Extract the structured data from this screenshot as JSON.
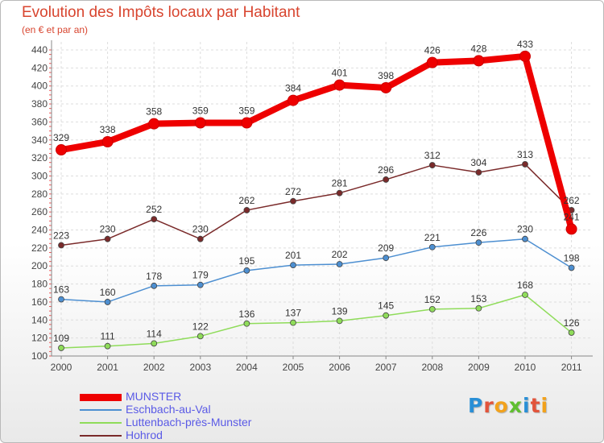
{
  "title": "Evolution des Impôts locaux par Habitant",
  "subtitle": "(en € et par an)",
  "logo": {
    "letters": [
      "P",
      "r",
      "o",
      "x",
      "i",
      "t",
      "i"
    ],
    "colors": [
      "#2a8fd6",
      "#e2543b",
      "#f2a21c",
      "#5fbf2f",
      "#2a8fd6",
      "#e2543b",
      "#f2a21c"
    ]
  },
  "chart_data": {
    "type": "line",
    "x": [
      "2000",
      "2001",
      "2002",
      "2003",
      "2004",
      "2005",
      "2006",
      "2007",
      "2008",
      "2009",
      "2010",
      "2011"
    ],
    "ylim": [
      100,
      440
    ],
    "yticks": [
      100,
      120,
      140,
      160,
      180,
      200,
      220,
      240,
      260,
      280,
      300,
      320,
      340,
      360,
      380,
      400,
      420,
      440
    ],
    "grid": true,
    "legend": "bottom-left",
    "series": [
      {
        "name": "MUNSTER",
        "color": "#ee0000",
        "values": [
          329,
          338,
          358,
          359,
          359,
          384,
          401,
          398,
          426,
          428,
          433,
          241
        ]
      },
      {
        "name": "Eschbach-au-Val",
        "color": "#4d8fd1",
        "values": [
          163,
          160,
          178,
          179,
          195,
          201,
          202,
          209,
          221,
          226,
          230,
          198
        ]
      },
      {
        "name": "Luttenbach-près-Munster",
        "color": "#8fdc5a",
        "values": [
          109,
          111,
          114,
          122,
          136,
          137,
          139,
          145,
          152,
          153,
          168,
          126
        ]
      },
      {
        "name": "Hohrod",
        "color": "#7a2a2a",
        "values": [
          223,
          230,
          252,
          230,
          262,
          272,
          281,
          296,
          312,
          304,
          313,
          262
        ]
      }
    ]
  }
}
